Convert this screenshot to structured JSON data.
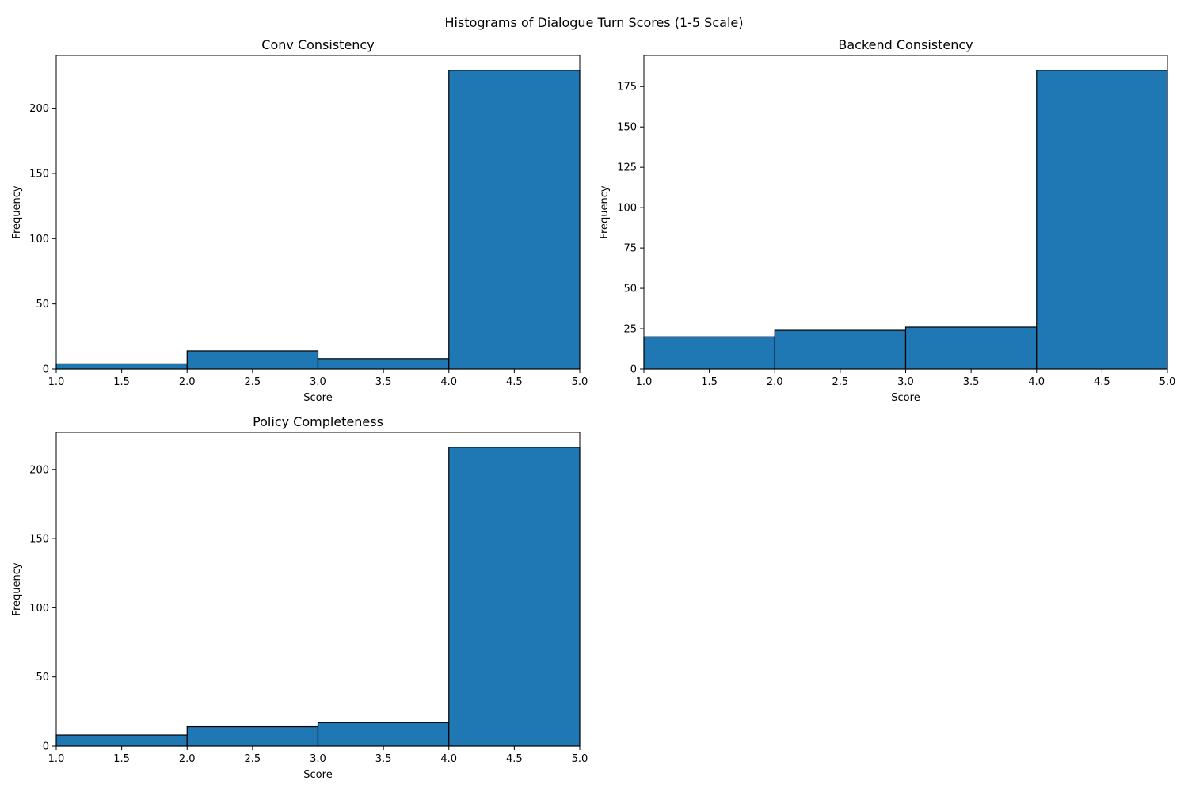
{
  "suptitle": "Histograms of Dialogue Turn Scores (1-5 Scale)",
  "colors": {
    "bar_fill": "#1f77b4",
    "bar_edge": "#000000",
    "axis": "#000000",
    "background": "#ffffff"
  },
  "chart_data": [
    {
      "type": "bar",
      "title": "Conv Consistency",
      "xlabel": "Score",
      "ylabel": "Frequency",
      "bin_edges": [
        1,
        2,
        3,
        4,
        5
      ],
      "values": [
        4,
        14,
        8,
        229
      ],
      "xlim": [
        1,
        5
      ],
      "ylim": [
        0,
        240.45
      ],
      "xticks": [
        1.0,
        1.5,
        2.0,
        2.5,
        3.0,
        3.5,
        4.0,
        4.5,
        5.0
      ],
      "xtick_labels": [
        "1.0",
        "1.5",
        "2.0",
        "2.5",
        "3.0",
        "3.5",
        "4.0",
        "4.5",
        "5.0"
      ],
      "yticks": [
        0,
        50,
        100,
        150,
        200
      ],
      "ytick_labels": [
        "0",
        "50",
        "100",
        "150",
        "200"
      ],
      "grid": false
    },
    {
      "type": "bar",
      "title": "Backend Consistency",
      "xlabel": "Score",
      "ylabel": "Frequency",
      "bin_edges": [
        1,
        2,
        3,
        4,
        5
      ],
      "values": [
        20,
        24,
        26,
        185
      ],
      "xlim": [
        1,
        5
      ],
      "ylim": [
        0,
        194.25
      ],
      "xticks": [
        1.0,
        1.5,
        2.0,
        2.5,
        3.0,
        3.5,
        4.0,
        4.5,
        5.0
      ],
      "xtick_labels": [
        "1.0",
        "1.5",
        "2.0",
        "2.5",
        "3.0",
        "3.5",
        "4.0",
        "4.5",
        "5.0"
      ],
      "yticks": [
        0,
        25,
        50,
        75,
        100,
        125,
        150,
        175
      ],
      "ytick_labels": [
        "0",
        "25",
        "50",
        "75",
        "100",
        "125",
        "150",
        "175"
      ],
      "grid": false
    },
    {
      "type": "bar",
      "title": "Policy Completeness",
      "xlabel": "Score",
      "ylabel": "Frequency",
      "bin_edges": [
        1,
        2,
        3,
        4,
        5
      ],
      "values": [
        8,
        14,
        17,
        216
      ],
      "xlim": [
        1,
        5
      ],
      "ylim": [
        0,
        226.8
      ],
      "xticks": [
        1.0,
        1.5,
        2.0,
        2.5,
        3.0,
        3.5,
        4.0,
        4.5,
        5.0
      ],
      "xtick_labels": [
        "1.0",
        "1.5",
        "2.0",
        "2.5",
        "3.0",
        "3.5",
        "4.0",
        "4.5",
        "5.0"
      ],
      "yticks": [
        0,
        50,
        100,
        150,
        200
      ],
      "ytick_labels": [
        "0",
        "50",
        "100",
        "150",
        "200"
      ],
      "grid": false
    }
  ]
}
